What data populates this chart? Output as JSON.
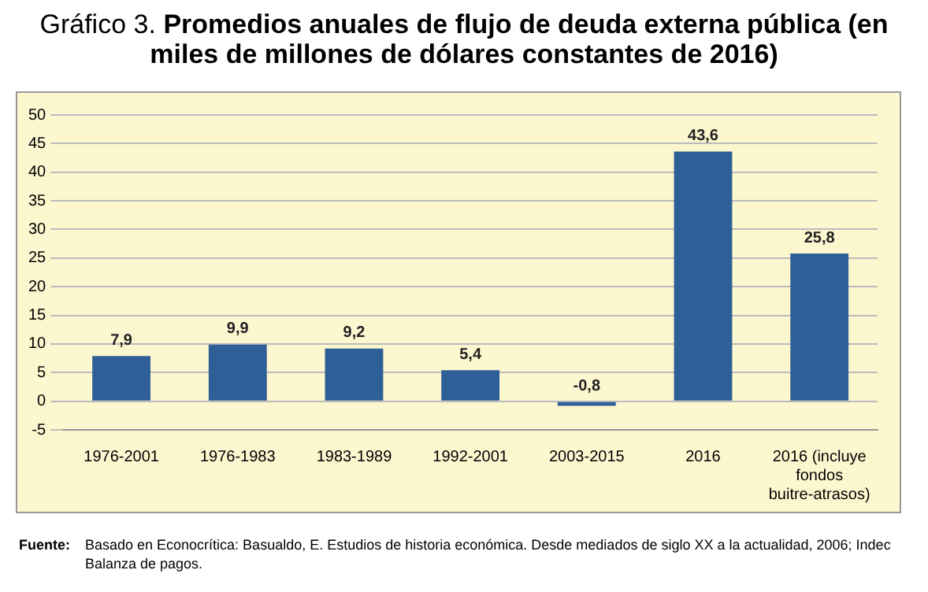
{
  "chart_data": {
    "type": "bar",
    "title": "Gráfico 3.",
    "subtitle": "Promedios anuales de flujo de deuda externa pública (en miles de millones de dólares constantes de 2016)",
    "categories": [
      "1976-2001",
      "1976-1983",
      "1983-1989",
      "1992-2001",
      "2003-2015",
      "2016",
      "2016 (incluye fondos buitre-atrasos)"
    ],
    "values": [
      7.9,
      9.9,
      9.2,
      5.4,
      -0.8,
      43.6,
      25.8
    ],
    "value_labels": [
      "7,9",
      "9,9",
      "9,2",
      "5,4",
      "-0,8",
      "43,6",
      "25,8"
    ],
    "color": "#2e5f96",
    "ylim": [
      -5,
      50
    ],
    "yticks": [
      -5,
      0,
      5,
      10,
      15,
      20,
      25,
      30,
      35,
      40,
      45,
      50
    ],
    "grid": "y",
    "legend": false,
    "annotations": [
      "Fuente:",
      "Basado en Econocrítica: Basualdo, E. Estudios de historia económica. Desde mediados de siglo XX a la actualidad, 2006; Indec Balanza de pagos."
    ]
  }
}
